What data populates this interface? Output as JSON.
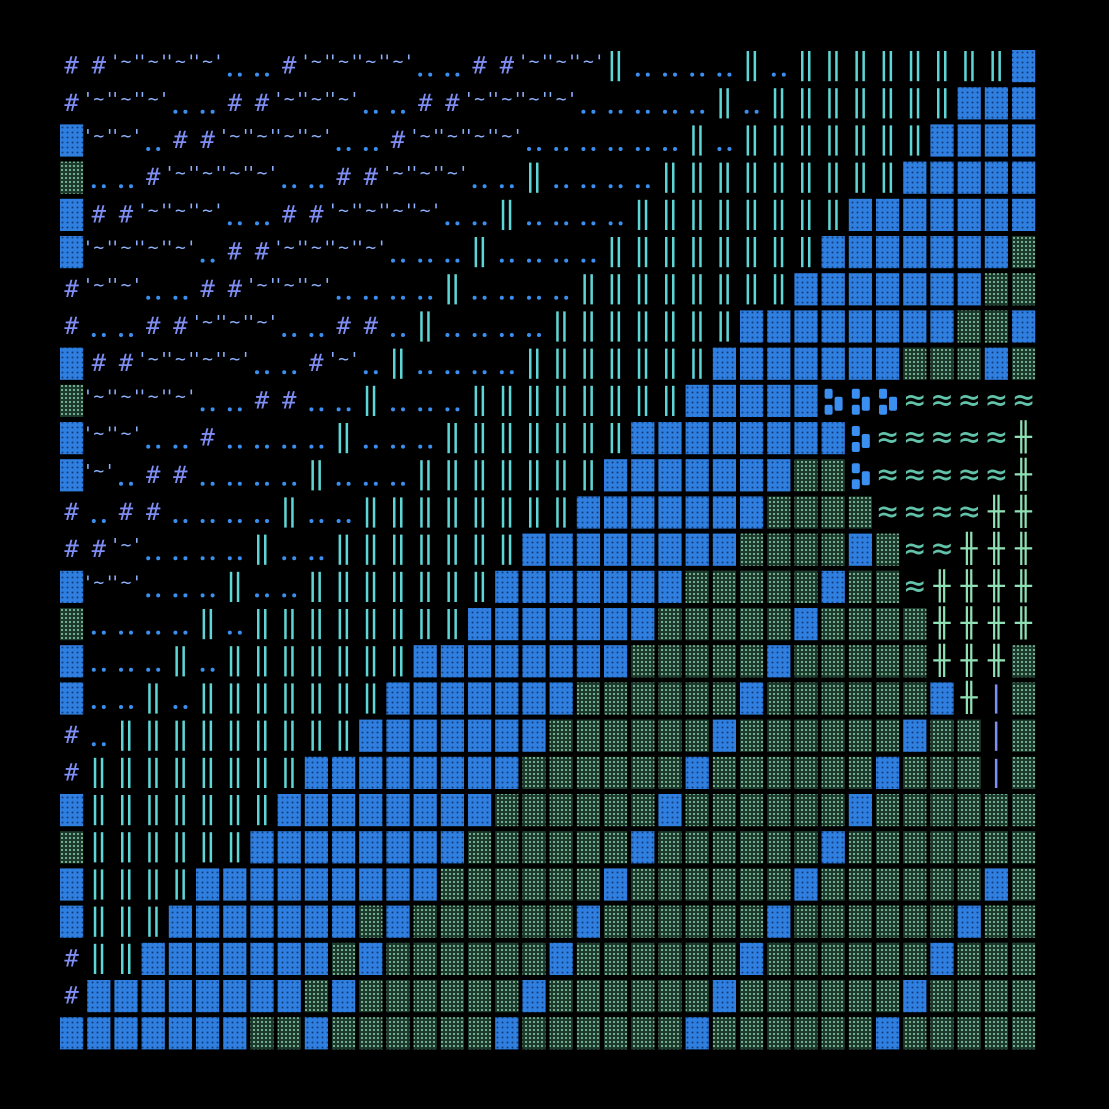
{
  "artwork": {
    "description_free": true,
    "background": "#000000",
    "palette": {
      "blue_block": "#2f7fe0",
      "blue_dot": "#123b78",
      "green_dither": "#3e8f6a",
      "green_dither_dot": "#8fd1a8",
      "cyan_bar": "#5fd6d6",
      "periwinkle": "#7f8ef5",
      "tilde_blue": "#8fb2ff",
      "wave_teal": "#62c2aa",
      "cross_green": "#8fe0b4",
      "dots_blue": "#3b8ff0"
    },
    "glyphs": {
      "hash": "#",
      "tilde_pair": "'~'",
      "dots": "..",
      "bar": "║",
      "wave": "≈",
      "cross": "╫",
      "pipe": "|"
    },
    "bands": [
      {
        "name": "hash-band",
        "glyph": "hash",
        "color": "periwinkle"
      },
      {
        "name": "tilde-band",
        "glyph": "tilde_pair",
        "color": "tilde_blue"
      },
      {
        "name": "dots-band",
        "glyph": "dots",
        "color": "dots_blue"
      },
      {
        "name": "bar-band",
        "glyph": "bar",
        "color": "cyan_bar"
      },
      {
        "name": "block-band",
        "glyph": "block",
        "color": "blue_block"
      },
      {
        "name": "dither-band",
        "glyph": "dither",
        "color": "green_dither"
      },
      {
        "name": "chain-band",
        "glyph": "chain",
        "color": "blue_block"
      },
      {
        "name": "wave-band",
        "glyph": "wave",
        "color": "wave_teal"
      },
      {
        "name": "cross-band",
        "glyph": "cross",
        "color": "cross_green"
      },
      {
        "name": "pipe-band",
        "glyph": "pipe",
        "color": "periwinkle"
      }
    ]
  }
}
